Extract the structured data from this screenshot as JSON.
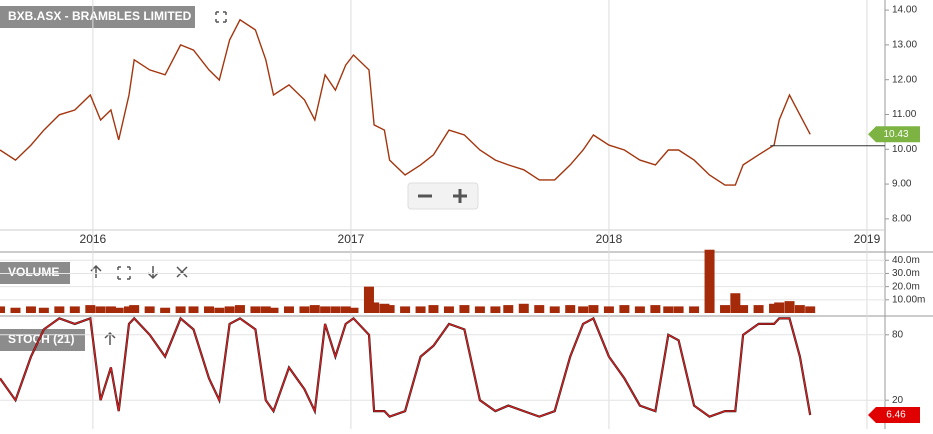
{
  "chart_data": [
    {
      "type": "line",
      "title": "BXB.ASX - BRAMBLES LIMITED",
      "color": "#a3360f",
      "x": [
        2015.64,
        2015.7,
        2015.76,
        2015.81,
        2015.87,
        2015.93,
        2015.99,
        2016.03,
        2016.07,
        2016.1,
        2016.14,
        2016.16,
        2016.22,
        2016.28,
        2016.34,
        2016.39,
        2016.45,
        2016.49,
        2016.53,
        2016.57,
        2016.63,
        2016.67,
        2016.7,
        2016.76,
        2016.82,
        2016.86,
        2016.9,
        2016.94,
        2016.98,
        2017.01,
        2017.07,
        2017.09,
        2017.13,
        2017.15,
        2017.21,
        2017.27,
        2017.32,
        2017.38,
        2017.44,
        2017.5,
        2017.56,
        2017.61,
        2017.67,
        2017.73,
        2017.79,
        2017.85,
        2017.9,
        2017.94,
        2018.0,
        2018.06,
        2018.12,
        2018.18,
        2018.23,
        2018.27,
        2018.33,
        2018.39,
        2018.45,
        2018.49,
        2018.52,
        2018.58,
        2018.64,
        2018.66,
        2018.7,
        2018.74,
        2018.78
      ],
      "values": [
        9.98,
        9.69,
        10.12,
        10.55,
        10.99,
        11.13,
        11.56,
        10.84,
        11.13,
        10.27,
        11.56,
        12.57,
        12.28,
        12.14,
        13.0,
        12.85,
        12.28,
        11.99,
        13.14,
        13.72,
        13.43,
        12.57,
        11.56,
        11.85,
        11.42,
        10.84,
        12.14,
        11.7,
        12.42,
        12.71,
        12.28,
        10.7,
        10.55,
        9.69,
        9.26,
        9.55,
        9.84,
        10.55,
        10.41,
        9.98,
        9.69,
        9.55,
        9.41,
        9.12,
        9.12,
        9.55,
        9.98,
        10.41,
        10.12,
        9.98,
        9.69,
        9.55,
        9.98,
        9.98,
        9.69,
        9.26,
        8.97,
        8.97,
        9.55,
        9.84,
        10.12,
        10.84,
        11.56,
        10.99,
        10.43
      ],
      "last_label": "10.43",
      "hline": 10.1,
      "xlim": [
        2015.64,
        2019.07
      ],
      "xticks": [
        2016,
        2017,
        2018,
        2019
      ],
      "ylim": [
        7.68,
        14.29
      ],
      "yticks": [
        {
          "value": 14,
          "label": "14.00"
        },
        {
          "value": 13,
          "label": "13.00"
        },
        {
          "value": 12,
          "label": "12.00"
        },
        {
          "value": 11,
          "label": "11.00"
        },
        {
          "value": 10,
          "label": "10.00"
        },
        {
          "value": 9,
          "label": "9.00"
        },
        {
          "value": 8,
          "label": "8.00"
        }
      ]
    },
    {
      "type": "bar",
      "title": "VOLUME",
      "color": "#a52a0a",
      "values": [
        5,
        4,
        5,
        4,
        5,
        5,
        6,
        5,
        5,
        4,
        5,
        6,
        5,
        4,
        5,
        5,
        5,
        4,
        5,
        6,
        5,
        5,
        4,
        5,
        5,
        6,
        5,
        5,
        5,
        4,
        20,
        8,
        7,
        6,
        5,
        5,
        6,
        5,
        6,
        5,
        5,
        6,
        7,
        6,
        5,
        6,
        5,
        6,
        5,
        6,
        5,
        6,
        5,
        5,
        5,
        48,
        6,
        15,
        6,
        6,
        7,
        8,
        9,
        6,
        5
      ],
      "ylim": [
        0,
        44
      ],
      "yticks": [
        {
          "value": 40,
          "label": "40.0m"
        },
        {
          "value": 30,
          "label": "30.0m"
        },
        {
          "value": 20,
          "label": "20.0m"
        },
        {
          "value": 10,
          "label": "10.00m"
        }
      ]
    },
    {
      "type": "line",
      "title": "STOCH (21)",
      "color": "#d42020",
      "values": [
        40,
        20,
        60,
        85,
        95,
        90,
        95,
        20,
        50,
        10,
        90,
        95,
        80,
        60,
        95,
        85,
        40,
        20,
        90,
        95,
        85,
        20,
        10,
        50,
        30,
        10,
        90,
        60,
        90,
        95,
        80,
        10,
        10,
        5,
        10,
        60,
        70,
        90,
        85,
        20,
        10,
        15,
        10,
        5,
        10,
        60,
        90,
        95,
        60,
        40,
        15,
        10,
        80,
        75,
        15,
        5,
        10,
        10,
        80,
        90,
        90,
        95,
        95,
        60,
        6.46
      ],
      "last_label": "6.46",
      "ylim": [
        0,
        100
      ],
      "yticks": [
        80,
        20
      ]
    }
  ]
}
